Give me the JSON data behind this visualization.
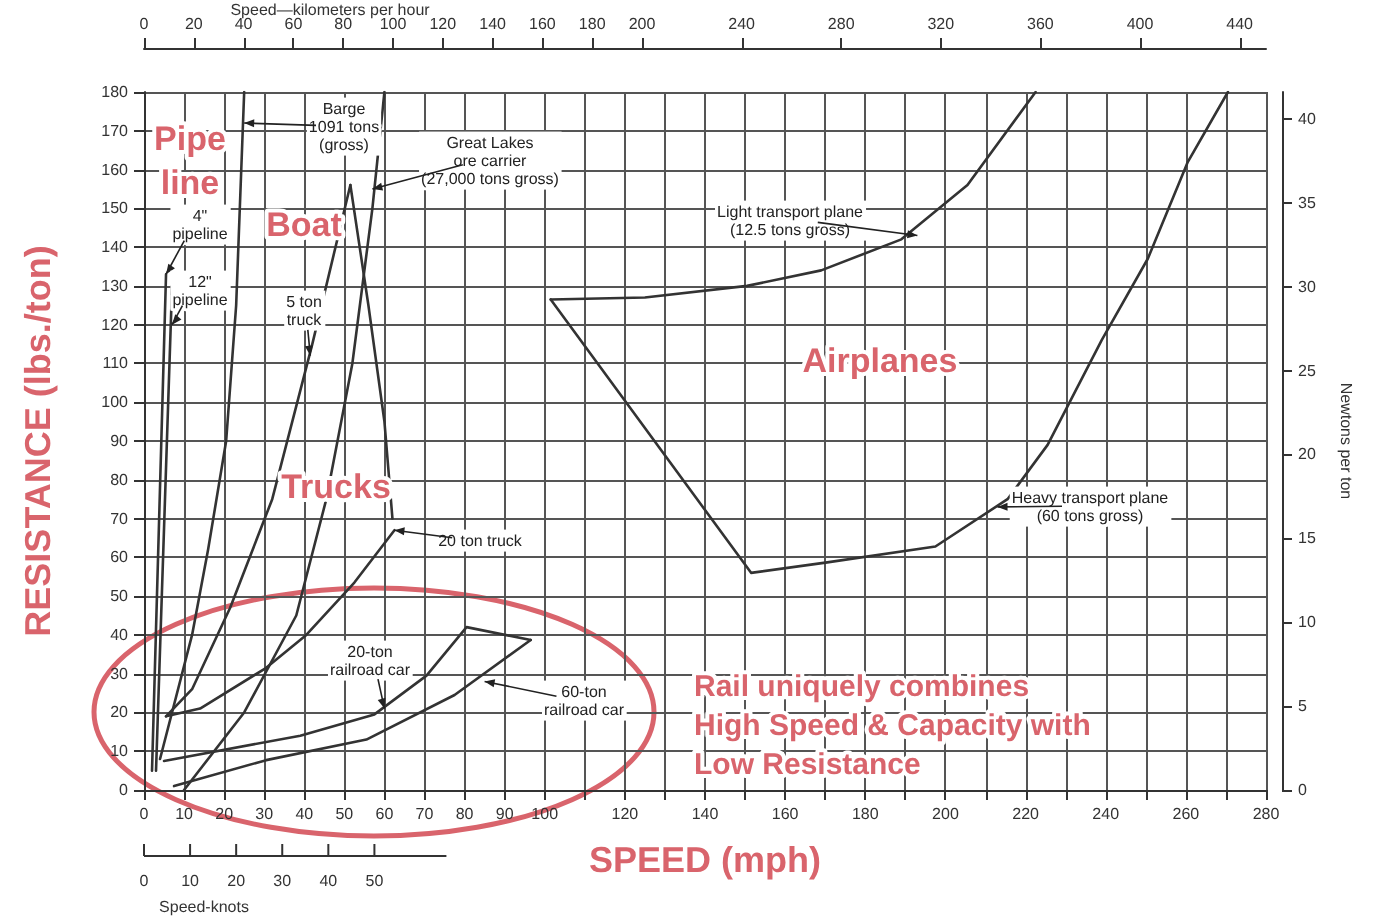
{
  "chart_data": {
    "type": "line",
    "xlabel": "SPEED (mph)",
    "ylabel": "RESISTANCE (lbs./ton)",
    "x2label": "Speed—kilometers per hour",
    "y2label": "Newtons per ton",
    "xlim": [
      0,
      280
    ],
    "ylim": [
      0,
      180
    ],
    "x2lim": [
      0,
      450.6
    ],
    "y2lim": [
      0,
      41.6
    ],
    "xticks": [
      0,
      10,
      20,
      30,
      40,
      50,
      60,
      70,
      80,
      90,
      100,
      {
        "value": 110,
        "label": null
      },
      120,
      {
        "value": 130,
        "label": null
      },
      140,
      {
        "value": 150,
        "label": null
      },
      160,
      {
        "value": 170,
        "label": null
      },
      180,
      {
        "value": 190,
        "label": null
      },
      200,
      {
        "value": 210,
        "label": null
      },
      220,
      {
        "value": 230,
        "label": null
      },
      240,
      {
        "value": 250,
        "label": null
      },
      260,
      {
        "value": 270,
        "label": null
      },
      280
    ],
    "yticks": [
      0,
      10,
      20,
      30,
      40,
      50,
      60,
      70,
      80,
      90,
      100,
      110,
      120,
      130,
      140,
      150,
      160,
      170,
      180
    ],
    "x2ticks": [
      0,
      20,
      40,
      60,
      80,
      100,
      120,
      140,
      160,
      180,
      200,
      240,
      280,
      320,
      360,
      400,
      440
    ],
    "y2ticks": [
      0,
      5,
      10,
      15,
      20,
      25,
      30,
      35,
      40
    ],
    "grid": true,
    "marker": "none",
    "line_style": "solid",
    "series": [
      {
        "color": "#333333",
        "x": [
          2,
          5.5
        ],
        "values": [
          5,
          133
        ]
      },
      {
        "color": "#333333",
        "x": [
          3,
          7
        ],
        "values": [
          5,
          130
        ]
      },
      {
        "color": "#333333",
        "x": [
          4,
          12,
          16,
          20.5,
          23,
          25
        ],
        "values": [
          8,
          40,
          62,
          90,
          125,
          180
        ]
      },
      {
        "color": "#333333",
        "x": [
          10,
          25,
          38,
          45.5,
          52,
          57,
          60
        ],
        "values": [
          0,
          20,
          45,
          75,
          110,
          150,
          180
        ]
      },
      {
        "color": "#333333",
        "x": [
          5.5,
          12,
          21.5,
          32,
          42,
          51.5
        ],
        "values": [
          19,
          26,
          47,
          75,
          115,
          156
        ]
      },
      {
        "color": "#333333",
        "x": [
          51.5,
          56,
          60,
          62
        ],
        "values": [
          156,
          125,
          95,
          70
        ]
      },
      {
        "color": "#333333",
        "x": [
          5.5,
          14,
          30.5,
          40.5,
          52.5,
          62.5
        ],
        "values": [
          19,
          21,
          31.5,
          40,
          53.5,
          67
        ]
      },
      {
        "color": "#333333",
        "x": [
          5,
          39,
          57.5,
          70.5,
          80.5,
          96.5
        ],
        "values": [
          7.5,
          14,
          19.5,
          29.5,
          42,
          38.7
        ]
      },
      {
        "color": "#333333",
        "x": [
          7.5,
          30.5,
          55.5,
          77.5,
          96.5
        ],
        "values": [
          1,
          7.7,
          13,
          24.5,
          38.7
        ]
      },
      {
        "color": "#333333",
        "x": [
          101.5,
          125,
          150.5,
          169,
          189,
          205.5,
          222.5
        ],
        "values": [
          126.5,
          127,
          130,
          134,
          142,
          156,
          180
        ]
      },
      {
        "color": "#333333",
        "x": [
          101.5,
          151.5,
          170.5,
          197.5,
          215.5,
          225.5,
          239,
          250.5,
          260.5,
          270.5
        ],
        "values": [
          126.5,
          56,
          58.7,
          62.8,
          75,
          89,
          116,
          137,
          162,
          180
        ]
      }
    ],
    "annotations": [
      "Pipe\nline",
      "Boat",
      "Trucks",
      "Airplanes",
      "Rail uniquely combines\nHigh Speed & Capacity with\nLow Resistance",
      "Speed-knots",
      "0",
      "10",
      "20",
      "30",
      "40",
      "50",
      {
        "text": "Barge\n1091 tons\n(gross)",
        "x": 25,
        "y": 172
      },
      {
        "text": "Great Lakes\nore carrier\n(27,000 tons gross)",
        "x": 57,
        "y": 155
      },
      {
        "text": "4\"\npipeline",
        "x": 5.5,
        "y": 133
      },
      {
        "text": "12\"\npipeline",
        "x": 7,
        "y": 120
      },
      {
        "text": "5 ton\ntruck",
        "x": 41.5,
        "y": 112
      },
      {
        "text": "20 ton truck",
        "x": 62.5,
        "y": 67
      },
      {
        "text": "20-ton\nrailroad car",
        "x": 60,
        "y": 21
      },
      {
        "text": "60-ton\nrailroad car",
        "x": 85,
        "y": 28
      },
      {
        "text": "Light transport plane\n(12.5 tons gross)",
        "x": 193,
        "y": 143
      },
      {
        "text": "Heavy transport plane\n(60 tons gross)",
        "x": 213,
        "y": 73
      }
    ]
  }
}
